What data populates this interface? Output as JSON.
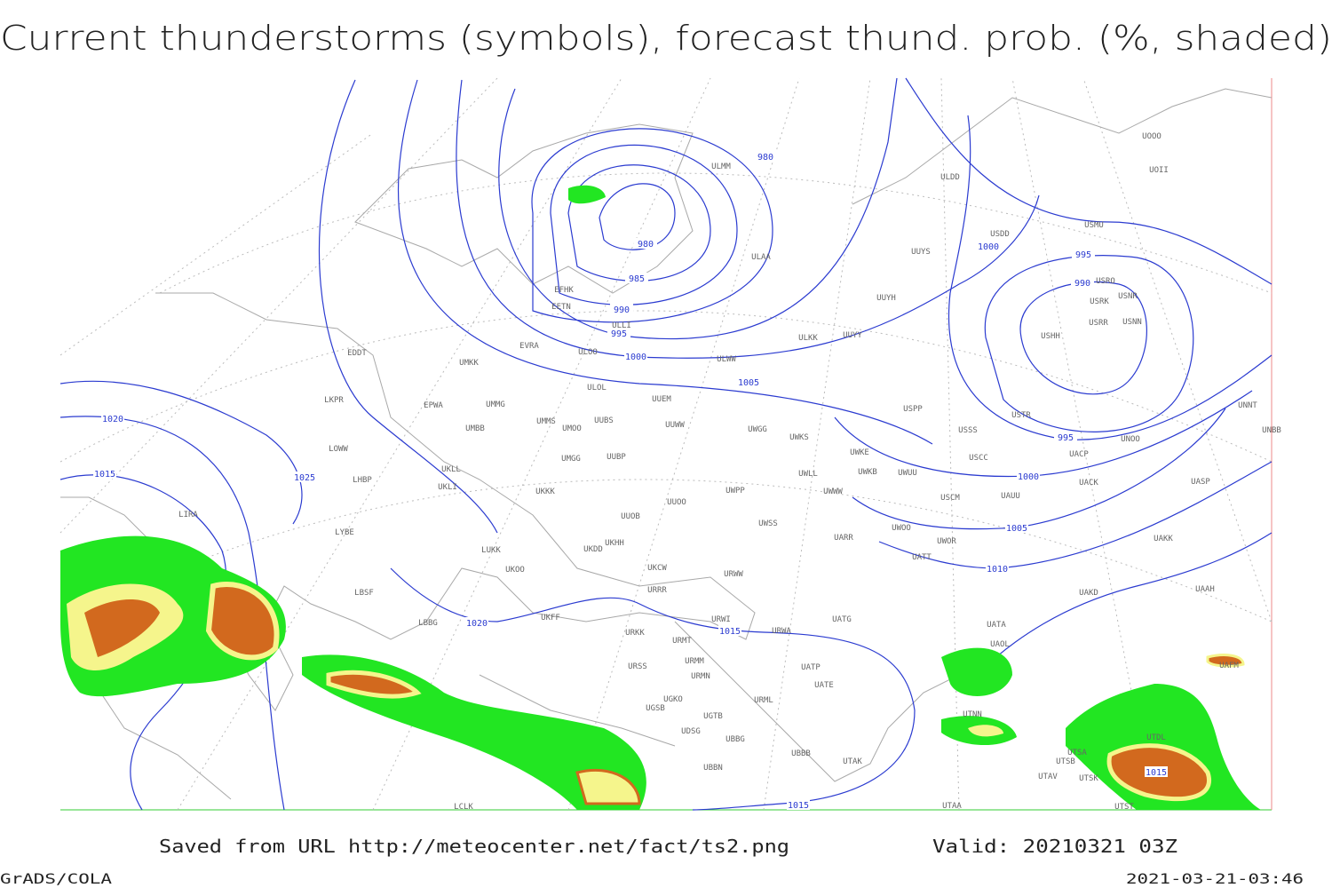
{
  "header": {
    "title": "Current thunderstorms (symbols), forecast thund. prob. (%, shaded)"
  },
  "isobar_labels": [
    "980",
    "980",
    "985",
    "990",
    "995",
    "1000",
    "1005",
    "1020",
    "1015",
    "1025",
    "1020",
    "1015",
    "1015",
    "1000",
    "995",
    "990",
    "995",
    "1000",
    "1005",
    "1010",
    "1015"
  ],
  "stations": [
    "ULMM",
    "ULDD",
    "UOOO",
    "UOII",
    "USDD",
    "USMU",
    "UUYS",
    "ULAA",
    "USRO",
    "USRK",
    "USNR",
    "USRR",
    "USNN",
    "USHH",
    "UUYH",
    "EFHK",
    "EETN",
    "ULLI",
    "EVRA",
    "UMKK",
    "EDDT",
    "ULOO",
    "ULKK",
    "UUYY",
    "ULWW",
    "ULOL",
    "UUEM",
    "LKPR",
    "EPWA",
    "UMMG",
    "UMMS",
    "UMOO",
    "UUBS",
    "UUWW",
    "UWGG",
    "UWKS",
    "USPP",
    "USSS",
    "USTR",
    "UNOO",
    "UNNT",
    "UNBB",
    "UMBB",
    "LOWW",
    "UMGG",
    "UUBP",
    "UWKE",
    "UWKB",
    "UWUU",
    "USCC",
    "UACP",
    "UACK",
    "UASP",
    "LHBP",
    "UKLL",
    "UKLI",
    "UKKK",
    "UWPP",
    "UWWW",
    "UWLL",
    "USCM",
    "UAUU",
    "UUOO",
    "LIRA",
    "UUOB",
    "UWSS",
    "UAKK",
    "LYBE",
    "UKHH",
    "UARR",
    "UWOO",
    "UWOR",
    "UATT",
    "LUKK",
    "UKDD",
    "UKOO",
    "UKCW",
    "LBSF",
    "URRR",
    "URWW",
    "UAKD",
    "UAAH",
    "UKFF",
    "URWI",
    "UATG",
    "LBBG",
    "URKK",
    "URWA",
    "UATA",
    "URMT",
    "UAOL",
    "UAFM",
    "URMM",
    "UATP",
    "URSS",
    "URMN",
    "UATE",
    "UGKO",
    "URML",
    "UGSB",
    "UGTB",
    "UDSG",
    "UBBG",
    "UTDL",
    "UTNN",
    "UTSA",
    "UTSB",
    "UBBB",
    "UTAK",
    "UBBN",
    "UTAV",
    "UTSK",
    "LCLK",
    "UTAA",
    "UTST"
  ],
  "footer": {
    "source": "Saved from URL http://meteocenter.net/fact/ts2.png",
    "valid": "Valid: 20210321 03Z",
    "credit": "GrADS/COLA",
    "timestamp": "2021-03-21-03:46"
  }
}
